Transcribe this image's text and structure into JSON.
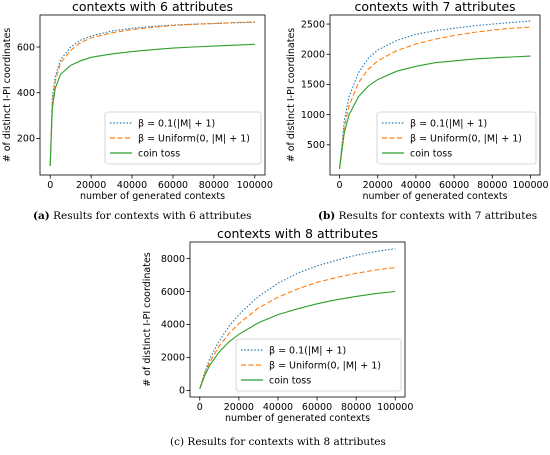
{
  "chart_data": [
    {
      "type": "line",
      "title": "contexts with 6 attributes",
      "xlabel": "number of generated contexts",
      "ylabel": "# of distinct I-PI coordinates",
      "xlim": [
        -5000,
        105000
      ],
      "ylim": [
        40,
        740
      ],
      "xticks": [
        0,
        20000,
        40000,
        60000,
        80000,
        100000
      ],
      "yticks": [
        200,
        400,
        600
      ],
      "legend": "lower-right",
      "grid": false,
      "series": [
        {
          "name": "β = 0.1(|M| + 1)",
          "color": "#1f77b4",
          "dash": "1.5,1.8",
          "x": [
            0,
            1000,
            2500,
            5000,
            10000,
            15000,
            20000,
            30000,
            40000,
            50000,
            60000,
            70000,
            80000,
            90000,
            100000
          ],
          "y": [
            80,
            380,
            470,
            545,
            600,
            630,
            648,
            670,
            682,
            690,
            696,
            700,
            703,
            706,
            708
          ]
        },
        {
          "name": "β = Uniform(0, |M| + 1)",
          "color": "#ff7f0e",
          "dash": "5,2.5",
          "x": [
            0,
            1000,
            2500,
            5000,
            10000,
            15000,
            20000,
            30000,
            40000,
            50000,
            60000,
            70000,
            80000,
            90000,
            100000
          ],
          "y": [
            80,
            360,
            450,
            530,
            585,
            620,
            640,
            662,
            676,
            686,
            694,
            699,
            703,
            707,
            710
          ]
        },
        {
          "name": "coin toss",
          "color": "#2ca02c",
          "dash": "",
          "x": [
            0,
            1000,
            2500,
            5000,
            10000,
            15000,
            20000,
            30000,
            40000,
            50000,
            60000,
            70000,
            80000,
            90000,
            100000
          ],
          "y": [
            80,
            330,
            420,
            480,
            520,
            540,
            555,
            570,
            580,
            588,
            595,
            600,
            604,
            608,
            612
          ]
        }
      ]
    },
    {
      "type": "line",
      "title": "contexts with 7 attributes",
      "xlabel": "number of generated contexts",
      "ylabel": "# of distinct I-PI coordinates",
      "xlim": [
        -5000,
        105000
      ],
      "ylim": [
        0,
        2650
      ],
      "xticks": [
        0,
        20000,
        40000,
        60000,
        80000,
        100000
      ],
      "yticks": [
        500,
        1000,
        1500,
        2000,
        2500
      ],
      "legend": "lower-right",
      "grid": false,
      "series": [
        {
          "name": "β = 0.1(|M| + 1)",
          "color": "#1f77b4",
          "dash": "1.5,1.8",
          "x": [
            0,
            2500,
            5000,
            10000,
            15000,
            20000,
            30000,
            40000,
            50000,
            60000,
            70000,
            80000,
            90000,
            100000
          ],
          "y": [
            100,
            900,
            1300,
            1700,
            1930,
            2070,
            2230,
            2330,
            2390,
            2430,
            2470,
            2500,
            2525,
            2550
          ]
        },
        {
          "name": "β = Uniform(0, |M| + 1)",
          "color": "#ff7f0e",
          "dash": "5,2.5",
          "x": [
            0,
            2500,
            5000,
            10000,
            15000,
            20000,
            30000,
            40000,
            50000,
            60000,
            70000,
            80000,
            90000,
            100000
          ],
          "y": [
            100,
            800,
            1150,
            1530,
            1750,
            1890,
            2060,
            2170,
            2250,
            2310,
            2360,
            2400,
            2430,
            2450
          ]
        },
        {
          "name": "coin toss",
          "color": "#2ca02c",
          "dash": "",
          "x": [
            0,
            2500,
            5000,
            10000,
            15000,
            20000,
            30000,
            40000,
            50000,
            60000,
            70000,
            80000,
            90000,
            100000
          ],
          "y": [
            100,
            700,
            1000,
            1300,
            1470,
            1580,
            1720,
            1800,
            1860,
            1890,
            1920,
            1940,
            1955,
            1970
          ]
        }
      ]
    },
    {
      "type": "line",
      "title": "contexts with 8 attributes",
      "xlabel": "number of generated contexts",
      "ylabel": "# of distinct I-PI coordinates",
      "xlim": [
        -5000,
        105000
      ],
      "ylim": [
        -400,
        9000
      ],
      "xticks": [
        0,
        20000,
        40000,
        60000,
        80000,
        100000
      ],
      "yticks": [
        0,
        2000,
        4000,
        6000,
        8000
      ],
      "legend": "lower-right",
      "grid": false,
      "series": [
        {
          "name": "β = 0.1(|M| + 1)",
          "color": "#1f77b4",
          "dash": "1.5,1.8",
          "x": [
            0,
            2500,
            5000,
            10000,
            15000,
            20000,
            30000,
            40000,
            50000,
            60000,
            70000,
            80000,
            90000,
            100000
          ],
          "y": [
            100,
            1100,
            1900,
            3000,
            3900,
            4600,
            5700,
            6500,
            7100,
            7550,
            7900,
            8200,
            8420,
            8600
          ]
        },
        {
          "name": "β = Uniform(0, |M| + 1)",
          "color": "#ff7f0e",
          "dash": "5,2.5",
          "x": [
            0,
            2500,
            5000,
            10000,
            15000,
            20000,
            30000,
            40000,
            50000,
            60000,
            70000,
            80000,
            90000,
            100000
          ],
          "y": [
            100,
            1000,
            1700,
            2700,
            3450,
            4050,
            5000,
            5650,
            6150,
            6550,
            6850,
            7100,
            7300,
            7450
          ]
        },
        {
          "name": "coin toss",
          "color": "#2ca02c",
          "dash": "",
          "x": [
            0,
            2500,
            5000,
            10000,
            15000,
            20000,
            30000,
            40000,
            50000,
            60000,
            70000,
            80000,
            90000,
            100000
          ],
          "y": [
            100,
            900,
            1500,
            2350,
            2950,
            3400,
            4100,
            4600,
            4950,
            5250,
            5500,
            5700,
            5870,
            6000
          ]
        }
      ]
    }
  ],
  "captions": [
    {
      "label": "(a)",
      "text": " Results for contexts with 6 attributes"
    },
    {
      "label": "(b)",
      "text": " Results for contexts with 7 attributes"
    },
    {
      "label": "(c)",
      "text": " Results for contexts with 8 attributes"
    }
  ]
}
